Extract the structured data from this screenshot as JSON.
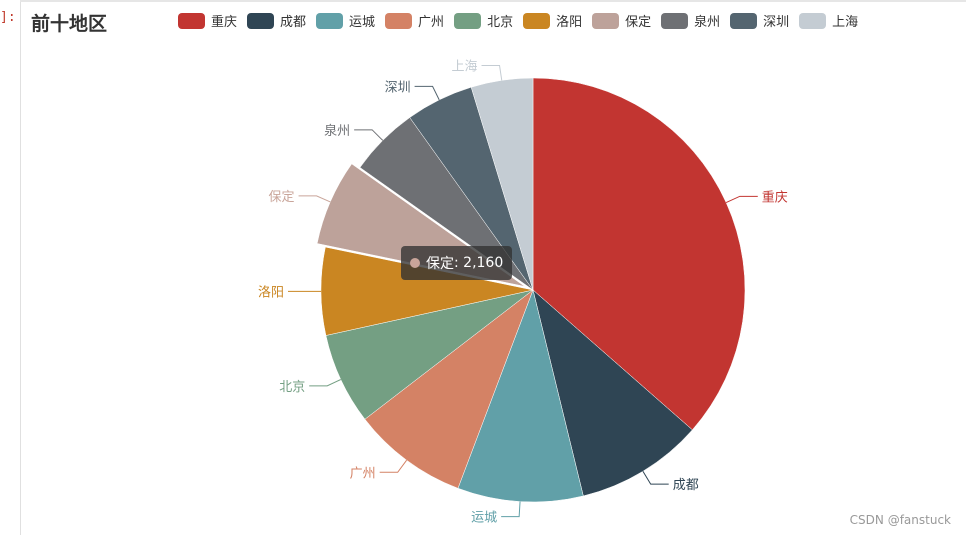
{
  "cell_marker": "]:",
  "watermark": "CSDN @fanstuck",
  "tooltip": {
    "series": "保定",
    "value_text": "2,160",
    "color": "#c9a59a"
  },
  "chart_data": {
    "type": "pie",
    "title": "前十地区",
    "legend_position": "top",
    "categories": [
      "重庆",
      "成都",
      "运城",
      "广州",
      "北京",
      "洛阳",
      "保定",
      "泉州",
      "深圳",
      "上海"
    ],
    "values": [
      12000,
      3200,
      3150,
      2900,
      2300,
      2200,
      2160,
      1750,
      1700,
      1550
    ],
    "colors": [
      "#c23531",
      "#2f4554",
      "#61a0a8",
      "#d48265",
      "#749f83",
      "#ca8622",
      "#bda29a",
      "#6e7074",
      "#546570",
      "#c4ccd3"
    ],
    "label_colors": [
      "#c23531",
      "#2f4554",
      "#61a0a8",
      "#d48265",
      "#749f83",
      "#ca8622",
      "#c9a59a",
      "#6e7074",
      "#546570",
      "#c4ccd3"
    ],
    "highlighted": "保定"
  }
}
